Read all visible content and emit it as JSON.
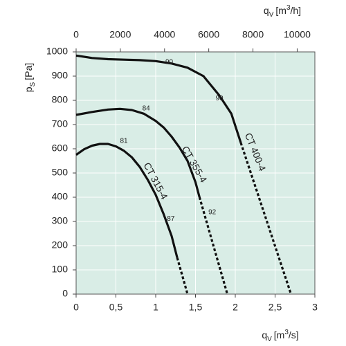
{
  "chart_data": {
    "type": "line",
    "y_label": {
      "symbol": "p",
      "subscript": "S",
      "unit": "[Pa]"
    },
    "x_label": {
      "symbol": "q",
      "subscript": "V",
      "unit_before": "[m",
      "unit_sup": "3",
      "unit_after": "/s]"
    },
    "x2_label": {
      "symbol": "q",
      "subscript": "V",
      "unit_before": "[m",
      "unit_sup": "3",
      "unit_after": "/h]"
    },
    "xlim": [
      0,
      3
    ],
    "xticks": [
      0,
      {
        "value": 0.5,
        "label": "0,5"
      },
      1,
      {
        "value": 1.5,
        "label": "1,5"
      },
      2,
      {
        "value": 2.5,
        "label": "2,5"
      },
      3
    ],
    "x2lim": [
      0,
      10800
    ],
    "x2ticks": [
      0,
      2000,
      4000,
      6000,
      8000,
      10000
    ],
    "ylim": [
      0,
      1000
    ],
    "yticks": [
      0,
      100,
      200,
      300,
      400,
      500,
      600,
      700,
      800,
      900,
      1000
    ],
    "grid": true,
    "background": "#d9ede6",
    "series": [
      {
        "name": "CT 315-4",
        "color": "#111111",
        "x": [
          0,
          0.1,
          0.2,
          0.3,
          0.4,
          0.5,
          0.6,
          0.7,
          0.8,
          0.9,
          1.0,
          1.1,
          1.2,
          1.27
        ],
        "values": [
          575,
          598,
          613,
          620,
          620,
          610,
          592,
          565,
          525,
          472,
          410,
          330,
          240,
          150
        ],
        "dashed_x": [
          1.27,
          1.4
        ],
        "dashed_values": [
          150,
          0
        ]
      },
      {
        "name": "CT 355-4",
        "color": "#111111",
        "x": [
          0,
          0.2,
          0.4,
          0.55,
          0.7,
          0.85,
          1.0,
          1.1,
          1.2,
          1.3,
          1.4,
          1.5,
          1.55
        ],
        "values": [
          740,
          752,
          762,
          765,
          760,
          745,
          715,
          688,
          650,
          605,
          550,
          462,
          400
        ],
        "dashed_x": [
          1.55,
          1.9
        ],
        "dashed_values": [
          400,
          0
        ]
      },
      {
        "name": "CT 400-4",
        "color": "#111111",
        "x": [
          0,
          0.2,
          0.4,
          0.6,
          0.8,
          1.0,
          1.2,
          1.4,
          1.6,
          1.8,
          1.95,
          2.07
        ],
        "values": [
          985,
          975,
          970,
          968,
          966,
          962,
          952,
          935,
          900,
          820,
          745,
          625
        ],
        "dashed_x": [
          2.07,
          2.7
        ],
        "dashed_values": [
          625,
          0
        ]
      }
    ],
    "annotations": [
      {
        "text": "81",
        "x": 0.6,
        "y": 632
      },
      {
        "text": "87",
        "x": 1.19,
        "y": 311
      },
      {
        "text": "84",
        "x": 0.88,
        "y": 766
      },
      {
        "text": "92",
        "x": 1.71,
        "y": 337
      },
      {
        "text": "90",
        "x": 1.17,
        "y": 957
      },
      {
        "text": "90",
        "x": 1.8,
        "y": 808
      }
    ]
  }
}
